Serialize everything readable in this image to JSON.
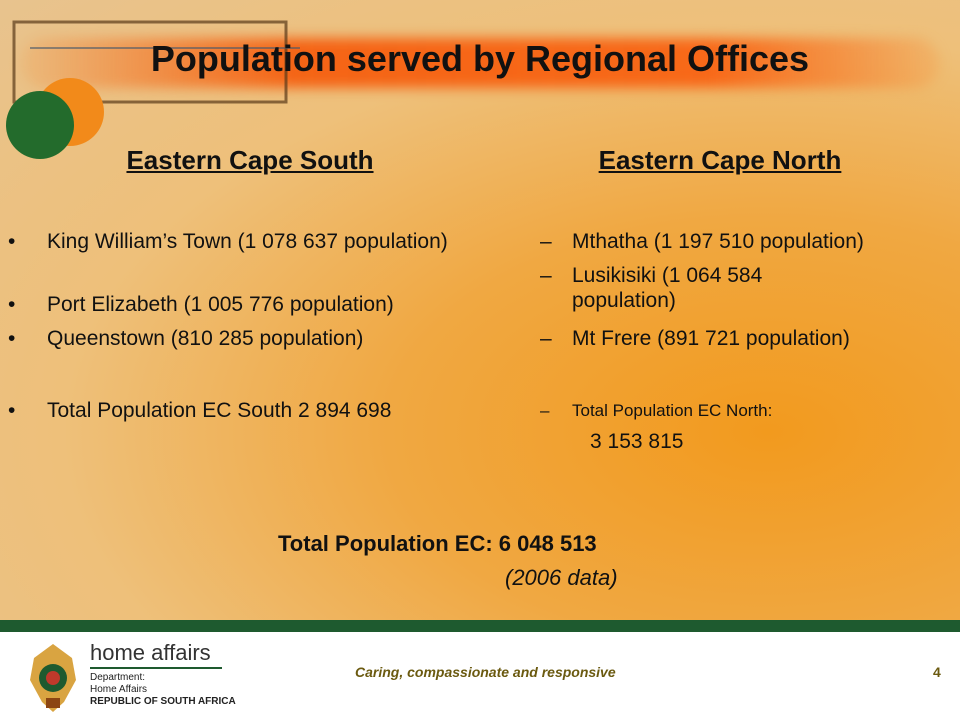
{
  "title": "Population served by Regional Offices",
  "south": {
    "heading": "Eastern Cape South",
    "items": [
      {
        "marker": "•",
        "text": "King William’s Town (1 078 637 population)"
      },
      {
        "marker": "•",
        "text": "Port Elizabeth (1 005 776 population)"
      },
      {
        "marker": "•",
        "text": "Queenstown (810 285 population)"
      },
      {
        "marker": "•",
        "text": "Total Population EC South 2 894 698"
      }
    ]
  },
  "north": {
    "heading": "Eastern Cape North",
    "items": [
      {
        "marker": "–",
        "text": "Mthatha (1 197 510 population)"
      },
      {
        "marker": "–",
        "text": "Lusikisiki (1 064 584 population)"
      },
      {
        "marker": "–",
        "text": "Mt Frere (891 721 population)"
      },
      {
        "marker": "–",
        "text": "Total Population EC North:"
      }
    ],
    "total_value": "3 153 815"
  },
  "summary": {
    "total": "Total Population EC: 6 048 513",
    "note": "(2006 data)"
  },
  "footer": {
    "brand": "home affairs",
    "department": "Department:",
    "department_name": "Home Affairs",
    "country": "REPUBLIC OF SOUTH AFRICA",
    "tagline": "Caring, compassionate and responsive",
    "page": "4"
  }
}
